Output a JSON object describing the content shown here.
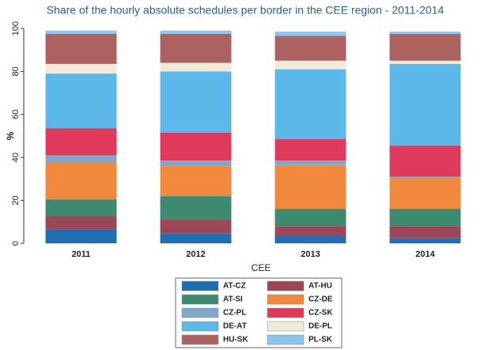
{
  "chart_data": {
    "type": "stacked_bar",
    "title": "Share of the hourly absolute schedules per border in the CEE region - 2011-2014",
    "x_label": "CEE",
    "y_label": "%",
    "categories": [
      "2011",
      "2012",
      "2013",
      "2014"
    ],
    "series": [
      {
        "name": "AT-CZ",
        "color": "#1f6fb0",
        "values": [
          6.5,
          4.5,
          3.5,
          2.5
        ]
      },
      {
        "name": "AT-HU",
        "color": "#9c4658",
        "values": [
          6,
          6.5,
          4.5,
          5.5
        ]
      },
      {
        "name": "AT-SI",
        "color": "#3d8a70",
        "values": [
          8,
          11,
          8,
          8
        ]
      },
      {
        "name": "CZ-DE",
        "color": "#f0883e",
        "values": [
          17,
          14,
          20.5,
          14.5
        ]
      },
      {
        "name": "CZ-PL",
        "color": "#80a8c8",
        "values": [
          3.5,
          2.5,
          2,
          0.5
        ]
      },
      {
        "name": "CZ-SK",
        "color": "#dd3a5c",
        "values": [
          12.5,
          13,
          10,
          14.5
        ]
      },
      {
        "name": "DE-AT",
        "color": "#5cb8e8",
        "values": [
          25.5,
          28.5,
          32.5,
          38
        ]
      },
      {
        "name": "DE-PL",
        "color": "#efebd8",
        "values": [
          4.5,
          4,
          4,
          1.5
        ]
      },
      {
        "name": "HU-SK",
        "color": "#ad6262",
        "values": [
          14,
          13.5,
          11.5,
          12.5
        ]
      },
      {
        "name": "PL-SK",
        "color": "#8cc6ec",
        "values": [
          1.5,
          1.5,
          2,
          1
        ]
      }
    ],
    "ylim": [
      0,
      100
    ],
    "yticks": [
      0,
      20,
      40,
      60,
      80,
      100
    ],
    "legend": "bottom"
  }
}
